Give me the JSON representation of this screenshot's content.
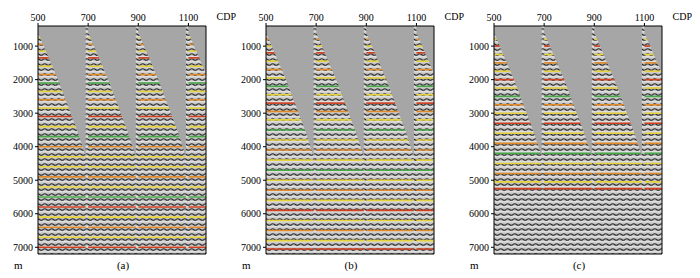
{
  "chart_data": [
    {
      "type": "gather",
      "title": "(a)",
      "x_label": "CDP",
      "y_label": "m",
      "xlim": [
        500,
        1170
      ],
      "xticks": [
        500,
        700,
        900,
        1100
      ],
      "ylim": [
        400,
        7200
      ],
      "yticks": [
        1000,
        2000,
        3000,
        4000,
        5000,
        6000,
        7000
      ],
      "gathers": {
        "start": [
          500,
          700,
          900,
          1100
        ],
        "mute": {
          "offset": [
            0,
            40,
            80,
            120,
            160,
            190
          ],
          "depth": [
            600,
            1300,
            2000,
            2800,
            3600,
            4300
          ]
        }
      },
      "picks": {
        "depth": [
          750,
          950,
          1150,
          1350,
          1600,
          1850,
          2100,
          2350,
          2600,
          2850,
          3100,
          3400,
          3700,
          4000,
          4300,
          4600,
          4900,
          5200,
          5500,
          5800,
          6100,
          6400,
          6700,
          7000
        ],
        "colors": [
          "#e6d23c",
          "#e08a2a",
          "#e6d23c",
          "#d2401e",
          "#e6d23c",
          "#e08a2a",
          "#4aa84a",
          "#e6d23c",
          "#e08a2a",
          "#e6d23c",
          "#d2401e",
          "#e6d23c",
          "#4aa84a",
          "#e08a2a",
          "#e6d23c",
          "#e6d23c",
          "#e08a2a",
          "#e6d23c",
          "#4aa84a",
          "#d2401e",
          "#e6d23c",
          "#e08a2a",
          "#e6d23c",
          "#d2401e"
        ]
      }
    },
    {
      "type": "gather",
      "title": "(b)",
      "x_label": "CDP",
      "y_label": "m",
      "xlim": [
        500,
        1170
      ],
      "xticks": [
        500,
        700,
        900,
        1100
      ],
      "ylim": [
        400,
        7200
      ],
      "yticks": [
        1000,
        2000,
        3000,
        4000,
        5000,
        6000,
        7000
      ],
      "gathers": {
        "start": [
          500,
          700,
          900,
          1100
        ],
        "mute": {
          "offset": [
            0,
            40,
            80,
            120,
            160,
            190
          ],
          "depth": [
            600,
            1300,
            2000,
            2800,
            3600,
            4300
          ]
        }
      },
      "picks": {
        "depth": [
          800,
          1000,
          1200,
          1450,
          1700,
          1950,
          2200,
          2450,
          2700,
          2950,
          3200,
          3500,
          3800,
          4100,
          4400,
          4700,
          5000,
          5300,
          5600,
          5900,
          6200,
          6500,
          6800,
          7050
        ],
        "colors": [
          "#e08a2a",
          "#e6d23c",
          "#d2401e",
          "#e6d23c",
          "#e08a2a",
          "#e6d23c",
          "#4aa84a",
          "#e6d23c",
          "#d2401e",
          "#e08a2a",
          "#e6d23c",
          "#4aa84a",
          "#e6d23c",
          "#e08a2a",
          "#e6d23c",
          "#4aa84a",
          "#e6d23c",
          "#e08a2a",
          "#e6d23c",
          "#d2401e",
          "#e6d23c",
          "#e08a2a",
          "#e6d23c",
          "#d2401e"
        ]
      }
    },
    {
      "type": "gather",
      "title": "(c)",
      "x_label": "CDP",
      "y_label": "m",
      "xlim": [
        500,
        1170
      ],
      "xticks": [
        500,
        700,
        900,
        1100
      ],
      "ylim": [
        400,
        7200
      ],
      "yticks": [
        1000,
        2000,
        3000,
        4000,
        5000,
        6000,
        7000
      ],
      "gathers": {
        "start": [
          500,
          700,
          900,
          1100
        ],
        "mute": {
          "offset": [
            0,
            40,
            80,
            120,
            160,
            190
          ],
          "depth": [
            600,
            1300,
            2000,
            2800,
            3600,
            4300
          ]
        }
      },
      "picks": {
        "depth": [
          800,
          1000,
          1250,
          1500,
          1750,
          2000,
          2250,
          2500,
          2750,
          3000,
          3300,
          3600,
          3900,
          4200,
          4500,
          4800,
          5050,
          5250
        ],
        "colors": [
          "#e6d23c",
          "#d2401e",
          "#e6d23c",
          "#e08a2a",
          "#e6d23c",
          "#d2401e",
          "#e6d23c",
          "#4aa84a",
          "#e08a2a",
          "#e6d23c",
          "#d2401e",
          "#e6d23c",
          "#e08a2a",
          "#4aa84a",
          "#e6d23c",
          "#e08a2a",
          "#e6d23c",
          "#d2401e"
        ]
      }
    }
  ]
}
